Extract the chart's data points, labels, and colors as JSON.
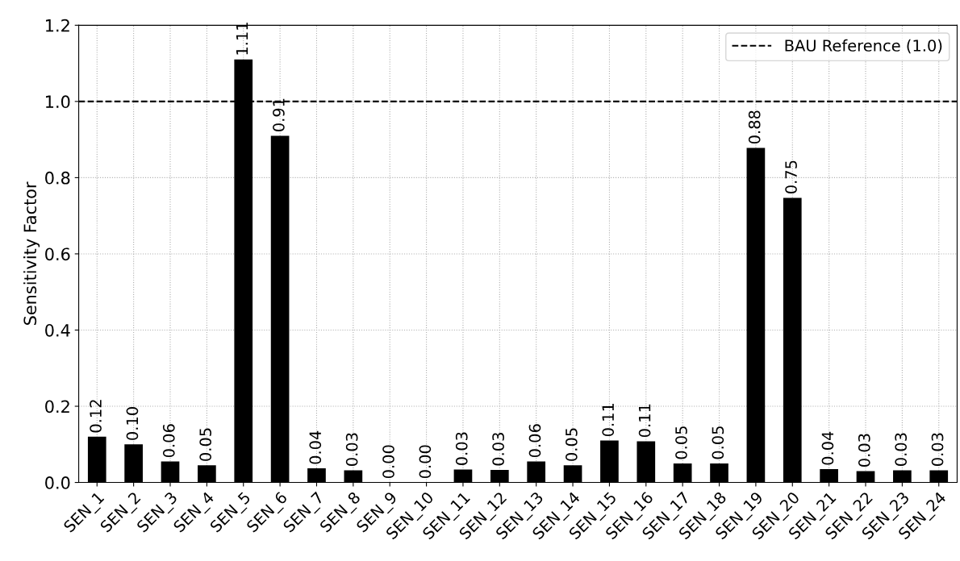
{
  "chart_data": {
    "type": "bar",
    "ylabel": "Sensitivity Factor",
    "categories": [
      "SEN_1",
      "SEN_2",
      "SEN_3",
      "SEN_4",
      "SEN_5",
      "SEN_6",
      "SEN_7",
      "SEN_8",
      "SEN_9",
      "SEN_10",
      "SEN_11",
      "SEN_12",
      "SEN_13",
      "SEN_14",
      "SEN_15",
      "SEN_16",
      "SEN_17",
      "SEN_18",
      "SEN_19",
      "SEN_20",
      "SEN_21",
      "SEN_22",
      "SEN_23",
      "SEN_24"
    ],
    "values": [
      0.12,
      0.1,
      0.055,
      0.045,
      1.11,
      0.91,
      0.037,
      0.032,
      0.0,
      0.0,
      0.034,
      0.033,
      0.055,
      0.045,
      0.11,
      0.108,
      0.05,
      0.05,
      0.878,
      0.747,
      0.035,
      0.03,
      0.032,
      0.032
    ],
    "value_labels": [
      "0.12",
      "0.10",
      "0.06",
      "0.05",
      "1.11",
      "0.91",
      "0.04",
      "0.03",
      "0.00",
      "0.00",
      "0.03",
      "0.03",
      "0.06",
      "0.05",
      "0.11",
      "0.11",
      "0.05",
      "0.05",
      "0.88",
      "0.75",
      "0.04",
      "0.03",
      "0.03",
      "0.03"
    ],
    "color": "#000000",
    "ylim": [
      0,
      1.2
    ],
    "yticks": [
      {
        "value": 0,
        "label": "0.0"
      },
      {
        "value": 0.2,
        "label": "0.2"
      },
      {
        "value": 0.4,
        "label": "0.4"
      },
      {
        "value": 0.6,
        "label": "0.6"
      },
      {
        "value": 0.8,
        "label": "0.8"
      },
      {
        "value": 1.0,
        "label": "1.0"
      },
      {
        "value": 1.2,
        "label": "1.2"
      }
    ],
    "ref_lines": [
      {
        "axis": "y",
        "value": 1.0,
        "label": "BAU Reference (1.0)",
        "color": "#000000",
        "line_style": "dashed"
      }
    ],
    "grid": true,
    "legend": "top right"
  }
}
